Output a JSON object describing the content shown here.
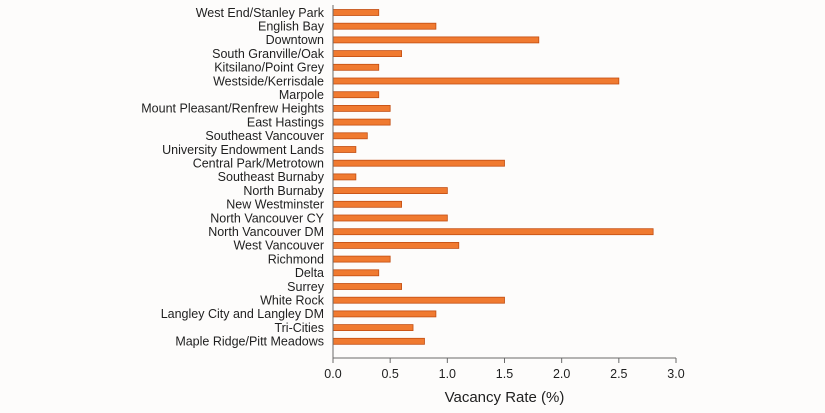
{
  "chart_data": {
    "type": "bar",
    "orientation": "horizontal",
    "categories": [
      "West End/Stanley Park",
      "English Bay",
      "Downtown",
      "South Granville/Oak",
      "Kitsilano/Point Grey",
      "Westside/Kerrisdale",
      "Marpole",
      "Mount Pleasant/Renfrew Heights",
      "East Hastings",
      "Southeast Vancouver",
      "University Endowment Lands",
      "Central Park/Metrotown",
      "Southeast Burnaby",
      "North Burnaby",
      "New Westminster",
      "North Vancouver CY",
      "North Vancouver DM",
      "West Vancouver",
      "Richmond",
      "Delta",
      "Surrey",
      "White Rock",
      "Langley City and Langley DM",
      "Tri-Cities",
      "Maple Ridge/Pitt Meadows"
    ],
    "values": [
      0.4,
      0.9,
      1.8,
      0.6,
      0.4,
      2.5,
      0.4,
      0.5,
      0.5,
      0.3,
      0.2,
      1.5,
      0.2,
      1.0,
      0.6,
      1.0,
      2.8,
      1.1,
      0.5,
      0.4,
      0.6,
      1.5,
      0.9,
      0.7,
      0.8
    ],
    "xlabel": "Vacancy Rate (%)",
    "ylabel": "",
    "xlim": [
      0,
      3.0
    ],
    "xticks": [
      "0.0",
      "0.5",
      "1.0",
      "1.5",
      "2.0",
      "2.5",
      "3.0"
    ],
    "grid": false,
    "colors": {
      "bar_fill": "#f07a30",
      "bar_stroke": "#c24e12"
    }
  }
}
